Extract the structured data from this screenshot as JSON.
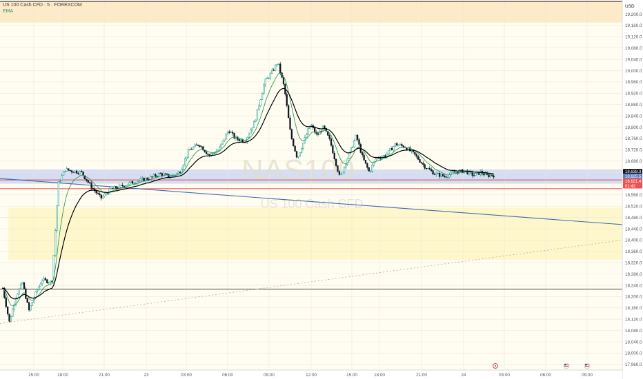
{
  "header": {
    "symbol_line": "US 100 Cash CFD · 5 · FOREXCOM",
    "indicator_label": "EMA"
  },
  "watermark": {
    "ticker": "NAS100",
    "description": "US 100 Cash CFD"
  },
  "price_axis": {
    "currency": "USD",
    "ticks": [
      "19,200.0",
      "19,160.0",
      "19,120.0",
      "19,080.0",
      "19,040.0",
      "19,000.0",
      "18,960.0",
      "18,920.0",
      "18,880.0",
      "18,840.0",
      "18,800.0",
      "18,760.0",
      "18,720.0",
      "18,680.0",
      "18,640.0",
      "18,600.0",
      "18,560.0",
      "18,520.0",
      "18,480.0",
      "18,440.0",
      "18,400.0",
      "18,360.0",
      "18,320.0",
      "18,280.0",
      "18,240.0",
      "18,200.0",
      "18,160.0",
      "18,120.0",
      "18,080.0",
      "18,040.0",
      "18,000.0",
      "17,960.0"
    ],
    "badges": [
      {
        "label": "18,638.3",
        "bg": "#131722",
        "fg": "#ffffff"
      },
      {
        "label": "18,625.5",
        "bg": "#5b7fc4",
        "fg": "#ffffff"
      },
      {
        "label": "18,621.4",
        "bg": "#ef5350",
        "fg": "#ffffff"
      },
      {
        "label": "01:42",
        "bg": "#ef5350",
        "fg": "#ffffff"
      }
    ]
  },
  "time_axis": {
    "ticks": [
      "15:00",
      "18:00",
      "21:00",
      "23",
      "03:00",
      "06:00",
      "09:00",
      "12:00",
      "15:00",
      "18:00",
      "21:00",
      "24",
      "03:00",
      "06:00",
      "09:00"
    ]
  },
  "colors": {
    "up": "#089981",
    "down": "#131722",
    "ema_fast": "#2e9a5a",
    "ema_slow": "#000000",
    "zone_orange": "#fde8c4",
    "zone_yellow": "#fff6c8",
    "zone_blue": "#cfd9f3",
    "trendline": "#3d6bb3",
    "red_level": "#e04848"
  },
  "chart_data": {
    "type": "candlestick",
    "interval": "5m",
    "ylim": [
      17940,
      19250
    ],
    "y_scale": "linear",
    "levels": [
      {
        "kind": "horizontal",
        "price": 19245,
        "color": "#000000"
      },
      {
        "kind": "horizontal",
        "price": 18227,
        "color": "#000000"
      },
      {
        "kind": "horizontal",
        "price": 18582,
        "color": "#e04848"
      },
      {
        "kind": "horizontal",
        "price": 18613,
        "color": "#e04848"
      }
    ],
    "zones": [
      {
        "top": 19245,
        "bottom": 19170,
        "color": "#fde8c4"
      },
      {
        "top": 18650,
        "bottom": 18600,
        "color": "#cfd9f3"
      },
      {
        "top": 18515,
        "bottom": 18330,
        "color": "#fff6c8"
      }
    ],
    "trendlines": [
      {
        "style": "solid",
        "color": "#3d6bb3",
        "from": {
          "x": "start",
          "y": 18618
        },
        "to": {
          "x": "end",
          "y": 18455
        }
      },
      {
        "style": "dashed",
        "color": "#c9a0a0",
        "from": {
          "x": "start",
          "y": 18105
        },
        "to": {
          "x": "end",
          "y": 18400
        }
      }
    ],
    "path_points": [
      {
        "t": 0,
        "p": 18230
      },
      {
        "t": 4,
        "p": 18110
      },
      {
        "t": 8,
        "p": 18200
      },
      {
        "t": 12,
        "p": 18250
      },
      {
        "t": 16,
        "p": 18150
      },
      {
        "t": 20,
        "p": 18210
      },
      {
        "t": 24,
        "p": 18260
      },
      {
        "t": 30,
        "p": 18250
      },
      {
        "t": 34,
        "p": 18600
      },
      {
        "t": 38,
        "p": 18650
      },
      {
        "t": 42,
        "p": 18645
      },
      {
        "t": 48,
        "p": 18640
      },
      {
        "t": 54,
        "p": 18590
      },
      {
        "t": 60,
        "p": 18548
      },
      {
        "t": 66,
        "p": 18580
      },
      {
        "t": 72,
        "p": 18590
      },
      {
        "t": 78,
        "p": 18602
      },
      {
        "t": 84,
        "p": 18612
      },
      {
        "t": 90,
        "p": 18620
      },
      {
        "t": 96,
        "p": 18635
      },
      {
        "t": 102,
        "p": 18625
      },
      {
        "t": 108,
        "p": 18640
      },
      {
        "t": 114,
        "p": 18720
      },
      {
        "t": 120,
        "p": 18740
      },
      {
        "t": 126,
        "p": 18700
      },
      {
        "t": 132,
        "p": 18720
      },
      {
        "t": 138,
        "p": 18790
      },
      {
        "t": 142,
        "p": 18760
      },
      {
        "t": 148,
        "p": 18750
      },
      {
        "t": 154,
        "p": 18820
      },
      {
        "t": 160,
        "p": 18960
      },
      {
        "t": 164,
        "p": 18990
      },
      {
        "t": 168,
        "p": 19030
      },
      {
        "t": 172,
        "p": 18940
      },
      {
        "t": 176,
        "p": 18770
      },
      {
        "t": 180,
        "p": 18690
      },
      {
        "t": 184,
        "p": 18750
      },
      {
        "t": 188,
        "p": 18810
      },
      {
        "t": 192,
        "p": 18770
      },
      {
        "t": 196,
        "p": 18800
      },
      {
        "t": 200,
        "p": 18750
      },
      {
        "t": 206,
        "p": 18620
      },
      {
        "t": 212,
        "p": 18710
      },
      {
        "t": 216,
        "p": 18770
      },
      {
        "t": 220,
        "p": 18690
      },
      {
        "t": 224,
        "p": 18640
      },
      {
        "t": 228,
        "p": 18690
      },
      {
        "t": 234,
        "p": 18700
      },
      {
        "t": 240,
        "p": 18740
      },
      {
        "t": 246,
        "p": 18730
      },
      {
        "t": 252,
        "p": 18700
      },
      {
        "t": 258,
        "p": 18660
      },
      {
        "t": 264,
        "p": 18635
      },
      {
        "t": 270,
        "p": 18625
      },
      {
        "t": 276,
        "p": 18640
      },
      {
        "t": 282,
        "p": 18645
      },
      {
        "t": 288,
        "p": 18630
      },
      {
        "t": 292,
        "p": 18640
      },
      {
        "t": 296,
        "p": 18628
      },
      {
        "t": 300,
        "p": 18630
      }
    ]
  }
}
